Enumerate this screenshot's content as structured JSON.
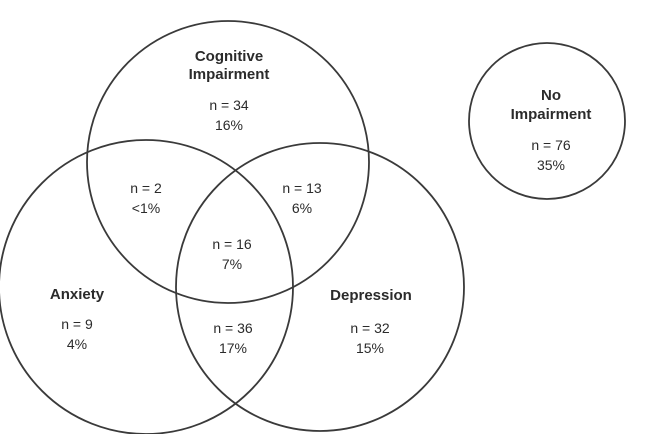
{
  "colors": {
    "stroke": "#3a3a3a",
    "text": "#2b2b2b",
    "background": "#ffffff"
  },
  "sets": {
    "cognitive": {
      "label_line1": "Cognitive",
      "label_line2": "Impairment",
      "n": "n = 34",
      "pct": "16%"
    },
    "anxiety": {
      "label": "Anxiety",
      "n": "n = 9",
      "pct": "4%"
    },
    "depression": {
      "label": "Depression",
      "n": "n = 32",
      "pct": "15%"
    },
    "no_impairment": {
      "label_line1": "No",
      "label_line2": "Impairment",
      "n": "n = 76",
      "pct": "35%"
    }
  },
  "intersections": {
    "cognitive_anxiety": {
      "n": "n = 2",
      "pct": "<1%"
    },
    "cognitive_depression": {
      "n": "n = 13",
      "pct": "6%"
    },
    "anxiety_depression": {
      "n": "n = 36",
      "pct": "17%"
    },
    "all_three": {
      "n": "n = 16",
      "pct": "7%"
    }
  }
}
